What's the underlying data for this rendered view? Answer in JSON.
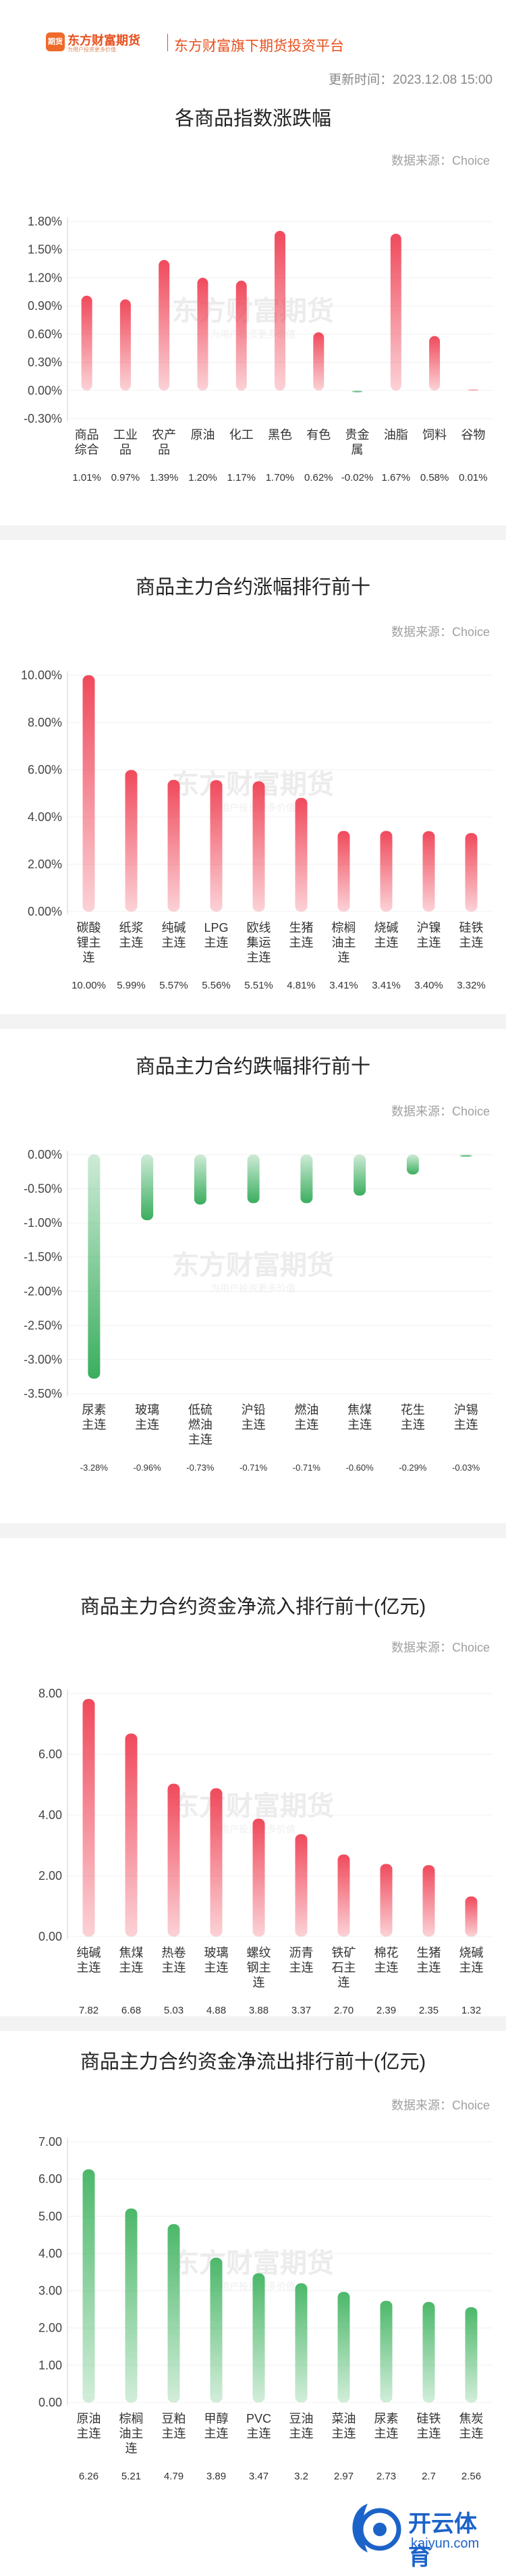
{
  "header": {
    "logo_text": "东方财富期货",
    "logo_badge": "期货",
    "slogan": "为用户投资更多价值",
    "tagline": "东方财富旗下期货投资平台",
    "update_time": "更新时间：2023.12.08 15:00"
  },
  "source_label": "数据来源：Choice",
  "watermark": {
    "main": "东方财富期货",
    "sub": "为用户投资更多价值"
  },
  "chart_data": [
    {
      "type": "bar",
      "title": "各商品指数涨跌幅",
      "categories": [
        "商品综合",
        "工业品",
        "农产品",
        "原油",
        "化工",
        "黑色",
        "有色",
        "贵金属",
        "油脂",
        "饲料",
        "谷物"
      ],
      "category_lines": [
        [
          "商品",
          "综合"
        ],
        [
          "工业",
          "品"
        ],
        [
          "农产",
          "品"
        ],
        [
          "原油"
        ],
        [
          "化工"
        ],
        [
          "黑色"
        ],
        [
          "有色"
        ],
        [
          "贵金",
          "属"
        ],
        [
          "油脂"
        ],
        [
          "饲料"
        ],
        [
          "谷物"
        ]
      ],
      "values": [
        1.01,
        0.97,
        1.39,
        1.2,
        1.17,
        1.7,
        0.62,
        -0.02,
        1.67,
        0.58,
        0.01
      ],
      "value_labels": [
        "1.01%",
        "0.97%",
        "1.39%",
        "1.20%",
        "1.17%",
        "1.70%",
        "0.62%",
        "-0.02%",
        "1.67%",
        "0.58%",
        "0.01%"
      ],
      "yticks": [
        "1.80%",
        "1.50%",
        "1.20%",
        "0.90%",
        "0.60%",
        "0.30%",
        "0.00%",
        "-0.30%"
      ],
      "ylim": [
        -0.3,
        1.8
      ],
      "colors": {
        "positive": "#f04a5c",
        "negative": "#3aae5e"
      }
    },
    {
      "type": "bar",
      "title": "商品主力合约涨幅排行前十",
      "categories": [
        "碳酸锂主连",
        "纸浆主连",
        "纯碱主连",
        "LPG主连",
        "欧线集运主连",
        "生猪主连",
        "棕榈油主连",
        "烧碱主连",
        "沪镍主连",
        "硅铁主连"
      ],
      "category_lines": [
        [
          "碳酸",
          "锂主",
          "连"
        ],
        [
          "纸浆",
          "主连"
        ],
        [
          "纯碱",
          "主连"
        ],
        [
          "LPG",
          "主连"
        ],
        [
          "欧线",
          "集运",
          "主连"
        ],
        [
          "生猪",
          "主连"
        ],
        [
          "棕榈",
          "油主",
          "连"
        ],
        [
          "烧碱",
          "主连"
        ],
        [
          "沪镍",
          "主连"
        ],
        [
          "硅铁",
          "主连"
        ]
      ],
      "values": [
        10.0,
        5.99,
        5.57,
        5.56,
        5.51,
        4.81,
        3.41,
        3.41,
        3.4,
        3.32
      ],
      "value_labels": [
        "10.00%",
        "5.99%",
        "5.57%",
        "5.56%",
        "5.51%",
        "4.81%",
        "3.41%",
        "3.41%",
        "3.40%",
        "3.32%"
      ],
      "yticks": [
        "10.00%",
        "8.00%",
        "6.00%",
        "4.00%",
        "2.00%",
        "0.00%"
      ],
      "ylim": [
        0,
        10
      ],
      "colors": {
        "positive": "#f04a5c"
      }
    },
    {
      "type": "bar",
      "title": "商品主力合约跌幅排行前十",
      "categories": [
        "尿素主连",
        "玻璃主连",
        "低硫燃油主连",
        "沪铅主连",
        "燃油主连",
        "焦煤主连",
        "花生主连",
        "沪锡主连"
      ],
      "category_lines": [
        [
          "尿素",
          "主连"
        ],
        [
          "玻璃",
          "主连"
        ],
        [
          "低硫",
          "燃油",
          "主连"
        ],
        [
          "沪铅",
          "主连"
        ],
        [
          "燃油",
          "主连"
        ],
        [
          "焦煤",
          "主连"
        ],
        [
          "花生",
          "主连"
        ],
        [
          "沪锡",
          "主连"
        ]
      ],
      "values": [
        -3.28,
        -0.96,
        -0.73,
        -0.71,
        -0.71,
        -0.6,
        -0.29,
        -0.03
      ],
      "value_labels": [
        "-3.28%",
        "-0.96%",
        "-0.73%",
        "-0.71%",
        "-0.71%",
        "-0.60%",
        "-0.29%",
        "-0.03%"
      ],
      "yticks": [
        "0.00%",
        "-0.50%",
        "-1.00%",
        "-1.50%",
        "-2.00%",
        "-2.50%",
        "-3.00%",
        "-3.50%"
      ],
      "ylim": [
        -3.5,
        0
      ],
      "colors": {
        "negative": "#3aae5e"
      }
    },
    {
      "type": "bar",
      "title": "商品主力合约资金净流入排行前十(亿元)",
      "categories": [
        "纯碱主连",
        "焦煤主连",
        "热卷主连",
        "玻璃主连",
        "螺纹钢主连",
        "沥青主连",
        "铁矿石主连",
        "棉花主连",
        "生猪主连",
        "烧碱主连"
      ],
      "category_lines": [
        [
          "纯碱",
          "主连"
        ],
        [
          "焦煤",
          "主连"
        ],
        [
          "热卷",
          "主连"
        ],
        [
          "玻璃",
          "主连"
        ],
        [
          "螺纹",
          "钢主",
          "连"
        ],
        [
          "沥青",
          "主连"
        ],
        [
          "铁矿",
          "石主",
          "连"
        ],
        [
          "棉花",
          "主连"
        ],
        [
          "生猪",
          "主连"
        ],
        [
          "烧碱",
          "主连"
        ]
      ],
      "values": [
        7.82,
        6.68,
        5.03,
        4.88,
        3.88,
        3.37,
        2.7,
        2.39,
        2.35,
        1.32
      ],
      "value_labels": [
        "7.82",
        "6.68",
        "5.03",
        "4.88",
        "3.88",
        "3.37",
        "2.70",
        "2.39",
        "2.35",
        "1.32"
      ],
      "yticks": [
        "8.00",
        "6.00",
        "4.00",
        "2.00",
        "0.00"
      ],
      "ylim": [
        0,
        8
      ],
      "colors": {
        "positive": "#f04a5c"
      }
    },
    {
      "type": "bar",
      "title": "商品主力合约资金净流出排行前十(亿元)",
      "categories": [
        "原油主连",
        "棕榈油主连",
        "豆粕主连",
        "甲醇主连",
        "PVC主连",
        "豆油主连",
        "菜油主连",
        "尿素主连",
        "硅铁主连",
        "焦炭主连"
      ],
      "category_lines": [
        [
          "原油",
          "主连"
        ],
        [
          "棕榈",
          "油主",
          "连"
        ],
        [
          "豆粕",
          "主连"
        ],
        [
          "甲醇",
          "主连"
        ],
        [
          "PVC",
          "主连"
        ],
        [
          "豆油",
          "主连"
        ],
        [
          "菜油",
          "主连"
        ],
        [
          "尿素",
          "主连"
        ],
        [
          "硅铁",
          "主连"
        ],
        [
          "焦炭",
          "主连"
        ]
      ],
      "values": [
        6.26,
        5.21,
        4.79,
        3.89,
        3.47,
        3.2,
        2.97,
        2.73,
        2.7,
        2.56
      ],
      "value_labels": [
        "6.26",
        "5.21",
        "4.79",
        "3.89",
        "3.47",
        "3.2",
        "2.97",
        "2.73",
        "2.7",
        "2.56"
      ],
      "yticks": [
        "7.00",
        "6.00",
        "5.00",
        "4.00",
        "3.00",
        "2.00",
        "1.00",
        "0.00"
      ],
      "ylim": [
        0,
        7
      ],
      "colors": {
        "positive": "#4cb86a"
      }
    }
  ],
  "footer_badge": {
    "name": "开云体育",
    "domain": "kaiyun.com"
  }
}
